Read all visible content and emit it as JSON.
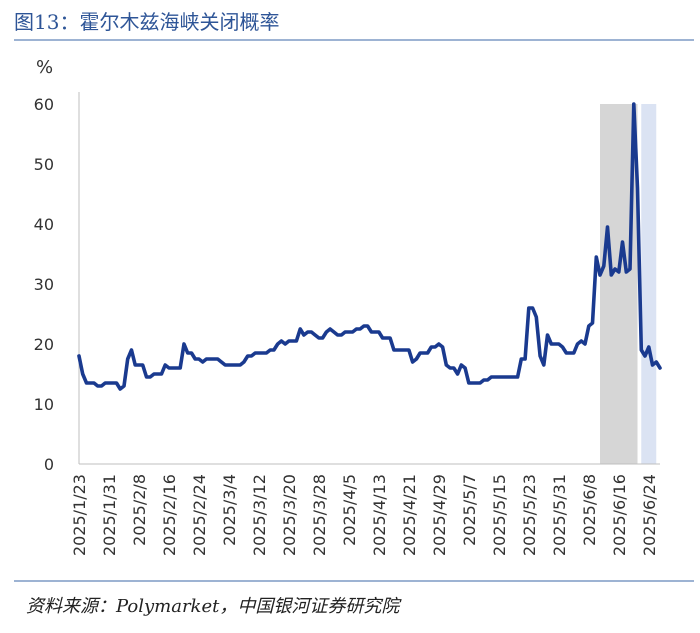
{
  "header": {
    "title": "图13：霍尔木兹海峡关闭概率"
  },
  "footer": {
    "source": "资料来源：Polymarket，中国银河证券研究院"
  },
  "colors": {
    "line": "#1a3a8f",
    "band_gray": "#d6d6d6",
    "band_blue": "#dbe3f3",
    "rule": "#9db3d3"
  },
  "chart_data": {
    "type": "line",
    "title": "",
    "ylabel": "%",
    "xlabel": "",
    "ylim": [
      0,
      65
    ],
    "yticks": [
      0,
      10,
      20,
      30,
      40,
      50,
      60
    ],
    "grid": false,
    "xticks": [
      "2025/1/23",
      "2025/1/31",
      "2025/2/8",
      "2025/2/16",
      "2025/2/24",
      "2025/3/4",
      "2025/3/12",
      "2025/3/20",
      "2025/3/28",
      "2025/4/5",
      "2025/4/13",
      "2025/4/21",
      "2025/4/29",
      "2025/5/7",
      "2025/5/15",
      "2025/5/23",
      "2025/5/31",
      "2025/6/8",
      "2025/6/16",
      "2025/6/24"
    ],
    "shaded_regions": [
      {
        "from": "2025/6/11",
        "to": "2025/6/21",
        "ymax": 60,
        "color": "gray"
      },
      {
        "from": "2025/6/22",
        "to": "2025/6/26",
        "ymax": 60,
        "color": "blue"
      }
    ],
    "series": [
      {
        "name": "",
        "points": [
          [
            "2025/1/23",
            18
          ],
          [
            "2025/1/24",
            15
          ],
          [
            "2025/1/25",
            13.5
          ],
          [
            "2025/1/26",
            13.5
          ],
          [
            "2025/1/27",
            13.5
          ],
          [
            "2025/1/28",
            13
          ],
          [
            "2025/1/29",
            13
          ],
          [
            "2025/1/30",
            13.5
          ],
          [
            "2025/1/31",
            13.5
          ],
          [
            "2025/2/1",
            13.5
          ],
          [
            "2025/2/2",
            13.5
          ],
          [
            "2025/2/3",
            12.5
          ],
          [
            "2025/2/4",
            13
          ],
          [
            "2025/2/5",
            17.5
          ],
          [
            "2025/2/6",
            19
          ],
          [
            "2025/2/7",
            16.5
          ],
          [
            "2025/2/8",
            16.5
          ],
          [
            "2025/2/9",
            16.5
          ],
          [
            "2025/2/10",
            14.5
          ],
          [
            "2025/2/11",
            14.5
          ],
          [
            "2025/2/12",
            15
          ],
          [
            "2025/2/13",
            15
          ],
          [
            "2025/2/14",
            15
          ],
          [
            "2025/2/15",
            16.5
          ],
          [
            "2025/2/16",
            16
          ],
          [
            "2025/2/17",
            16
          ],
          [
            "2025/2/18",
            16
          ],
          [
            "2025/2/19",
            16
          ],
          [
            "2025/2/20",
            20
          ],
          [
            "2025/2/21",
            18.5
          ],
          [
            "2025/2/22",
            18.5
          ],
          [
            "2025/2/23",
            17.5
          ],
          [
            "2025/2/24",
            17.5
          ],
          [
            "2025/2/25",
            17
          ],
          [
            "2025/2/26",
            17.5
          ],
          [
            "2025/2/27",
            17.5
          ],
          [
            "2025/2/28",
            17.5
          ],
          [
            "2025/3/1",
            17.5
          ],
          [
            "2025/3/2",
            17
          ],
          [
            "2025/3/3",
            16.5
          ],
          [
            "2025/3/4",
            16.5
          ],
          [
            "2025/3/5",
            16.5
          ],
          [
            "2025/3/6",
            16.5
          ],
          [
            "2025/3/7",
            16.5
          ],
          [
            "2025/3/8",
            17
          ],
          [
            "2025/3/9",
            18
          ],
          [
            "2025/3/10",
            18
          ],
          [
            "2025/3/11",
            18.5
          ],
          [
            "2025/3/12",
            18.5
          ],
          [
            "2025/3/13",
            18.5
          ],
          [
            "2025/3/14",
            18.5
          ],
          [
            "2025/3/15",
            19
          ],
          [
            "2025/3/16",
            19
          ],
          [
            "2025/3/17",
            20
          ],
          [
            "2025/3/18",
            20.5
          ],
          [
            "2025/3/19",
            20
          ],
          [
            "2025/3/20",
            20.5
          ],
          [
            "2025/3/21",
            20.5
          ],
          [
            "2025/3/22",
            20.5
          ],
          [
            "2025/3/23",
            22.5
          ],
          [
            "2025/3/24",
            21.5
          ],
          [
            "2025/3/25",
            22
          ],
          [
            "2025/3/26",
            22
          ],
          [
            "2025/3/27",
            21.5
          ],
          [
            "2025/3/28",
            21
          ],
          [
            "2025/3/29",
            21
          ],
          [
            "2025/3/30",
            22
          ],
          [
            "2025/3/31",
            22.5
          ],
          [
            "2025/4/1",
            22
          ],
          [
            "2025/4/2",
            21.5
          ],
          [
            "2025/4/3",
            21.5
          ],
          [
            "2025/4/4",
            22
          ],
          [
            "2025/4/5",
            22
          ],
          [
            "2025/4/6",
            22
          ],
          [
            "2025/4/7",
            22.5
          ],
          [
            "2025/4/8",
            22.5
          ],
          [
            "2025/4/9",
            23
          ],
          [
            "2025/4/10",
            23
          ],
          [
            "2025/4/11",
            22
          ],
          [
            "2025/4/12",
            22
          ],
          [
            "2025/4/13",
            22
          ],
          [
            "2025/4/14",
            21
          ],
          [
            "2025/4/15",
            21
          ],
          [
            "2025/4/16",
            21
          ],
          [
            "2025/4/17",
            19
          ],
          [
            "2025/4/18",
            19
          ],
          [
            "2025/4/19",
            19
          ],
          [
            "2025/4/20",
            19
          ],
          [
            "2025/4/21",
            19
          ],
          [
            "2025/4/22",
            17
          ],
          [
            "2025/4/23",
            17.5
          ],
          [
            "2025/4/24",
            18.5
          ],
          [
            "2025/4/25",
            18.5
          ],
          [
            "2025/4/26",
            18.5
          ],
          [
            "2025/4/27",
            19.5
          ],
          [
            "2025/4/28",
            19.5
          ],
          [
            "2025/4/29",
            20
          ],
          [
            "2025/4/30",
            19.5
          ],
          [
            "2025/5/1",
            16.5
          ],
          [
            "2025/5/2",
            16
          ],
          [
            "2025/5/3",
            16
          ],
          [
            "2025/5/4",
            15
          ],
          [
            "2025/5/5",
            16.5
          ],
          [
            "2025/5/6",
            16
          ],
          [
            "2025/5/7",
            13.5
          ],
          [
            "2025/5/8",
            13.5
          ],
          [
            "2025/5/9",
            13.5
          ],
          [
            "2025/5/10",
            13.5
          ],
          [
            "2025/5/11",
            14
          ],
          [
            "2025/5/12",
            14
          ],
          [
            "2025/5/13",
            14.5
          ],
          [
            "2025/5/14",
            14.5
          ],
          [
            "2025/5/15",
            14.5
          ],
          [
            "2025/5/16",
            14.5
          ],
          [
            "2025/5/17",
            14.5
          ],
          [
            "2025/5/18",
            14.5
          ],
          [
            "2025/5/19",
            14.5
          ],
          [
            "2025/5/20",
            14.5
          ],
          [
            "2025/5/21",
            17.5
          ],
          [
            "2025/5/22",
            17.5
          ],
          [
            "2025/5/23",
            26
          ],
          [
            "2025/5/24",
            26
          ],
          [
            "2025/5/25",
            24.5
          ],
          [
            "2025/5/26",
            18
          ],
          [
            "2025/5/27",
            16.5
          ],
          [
            "2025/5/28",
            21.5
          ],
          [
            "2025/5/29",
            20
          ],
          [
            "2025/5/30",
            20
          ],
          [
            "2025/5/31",
            20
          ],
          [
            "2025/6/1",
            19.5
          ],
          [
            "2025/6/2",
            18.5
          ],
          [
            "2025/6/3",
            18.5
          ],
          [
            "2025/6/4",
            18.5
          ],
          [
            "2025/6/5",
            20
          ],
          [
            "2025/6/6",
            20.5
          ],
          [
            "2025/6/7",
            20
          ],
          [
            "2025/6/8",
            23
          ],
          [
            "2025/6/9",
            23.5
          ],
          [
            "2025/6/10",
            34.5
          ],
          [
            "2025/6/11",
            31.5
          ],
          [
            "2025/6/12",
            33
          ],
          [
            "2025/6/13",
            39.5
          ],
          [
            "2025/6/14",
            31.5
          ],
          [
            "2025/6/15",
            32.5
          ],
          [
            "2025/6/16",
            32
          ],
          [
            "2025/6/17",
            37
          ],
          [
            "2025/6/18",
            32
          ],
          [
            "2025/6/19",
            32.5
          ],
          [
            "2025/6/20",
            60
          ],
          [
            "2025/6/21",
            46
          ],
          [
            "2025/6/22",
            19
          ],
          [
            "2025/6/23",
            18
          ],
          [
            "2025/6/24",
            19.5
          ],
          [
            "2025/6/25",
            16.5
          ],
          [
            "2025/6/26",
            17
          ],
          [
            "2025/6/27",
            16
          ]
        ]
      }
    ]
  }
}
